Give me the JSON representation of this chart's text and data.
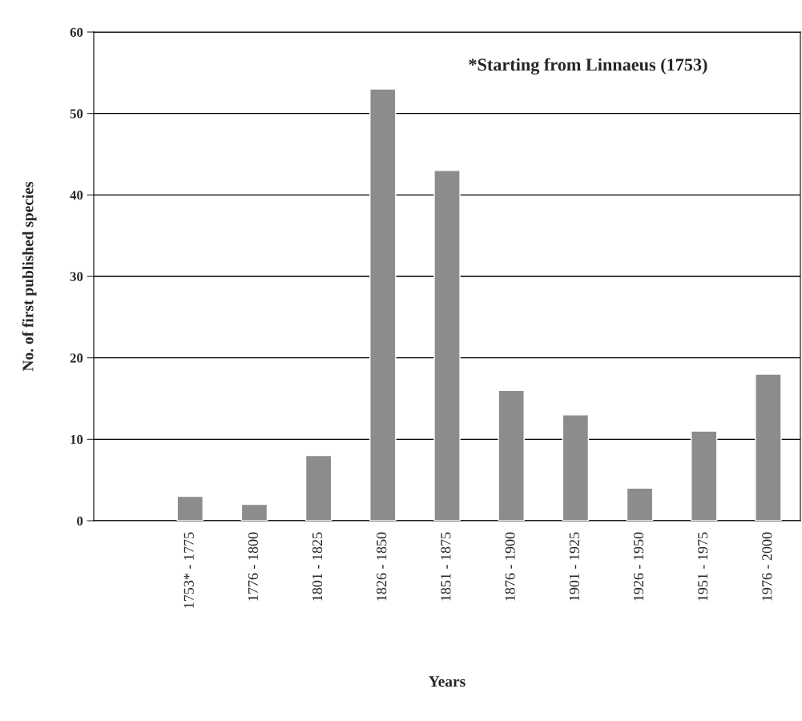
{
  "chart_data": {
    "type": "bar",
    "xlabel": "Years",
    "ylabel": "No. of first published species",
    "categories": [
      null,
      "1753* - 1775",
      "1776 - 1800",
      "1801 - 1825",
      "1826 - 1850",
      "1851 - 1875",
      "1876 - 1900",
      "1901 - 1925",
      "1926 - 1950",
      "1951 - 1975",
      "1976 - 2000"
    ],
    "values": [
      null,
      3,
      2,
      8,
      53,
      43,
      16,
      13,
      4,
      11,
      18
    ],
    "color": "#8c8c8c",
    "ylim": [
      0,
      60
    ],
    "yticks": [
      0,
      10,
      20,
      30,
      40,
      50,
      60
    ],
    "grid": "y",
    "annotations": [
      "*Starting from Linnaeus (1753)"
    ]
  }
}
